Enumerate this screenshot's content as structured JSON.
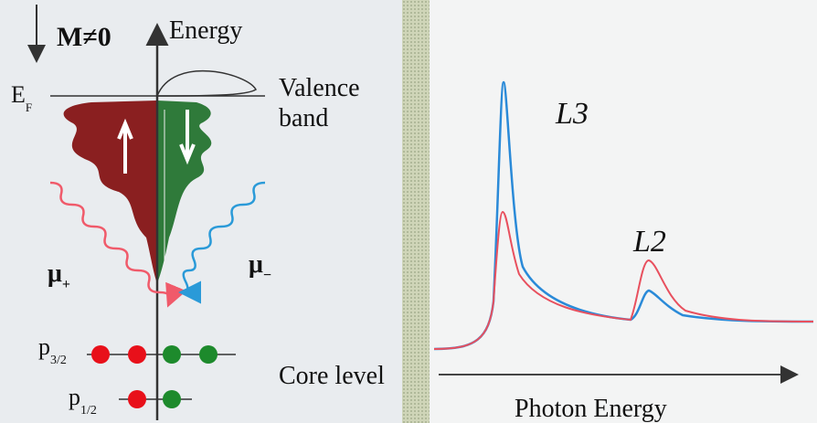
{
  "magnetization": "M≠0",
  "energy_axis": "Energy",
  "fermi_level": {
    "main": "E",
    "sub": "F"
  },
  "valence_band": [
    "Valence",
    "band"
  ],
  "mu_plus": {
    "main": "μ",
    "sub": "+"
  },
  "mu_minus": {
    "main": "μ",
    "sub": "−"
  },
  "p32": {
    "main": "p",
    "sub": "3/2"
  },
  "p12": {
    "main": "p",
    "sub": "1/2"
  },
  "core_level": "Core level",
  "l3": "L3",
  "l2": "L2",
  "x_axis": "Photon Energy"
}
